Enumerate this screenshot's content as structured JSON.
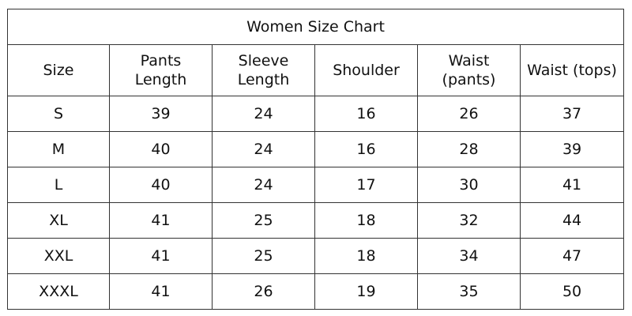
{
  "title": "Women Size Chart",
  "headers": [
    "Size",
    "Pants Length",
    "Sleeve Length",
    "Shoulder",
    "Waist (pants)",
    "Waist (tops)"
  ],
  "header_lines": [
    [
      "Size"
    ],
    [
      "Pants",
      "Length"
    ],
    [
      "Sleeve",
      "Length"
    ],
    [
      "Shoulder"
    ],
    [
      "Waist",
      "(pants)"
    ],
    [
      "Waist (tops)"
    ]
  ],
  "rows": [
    [
      "S",
      "39",
      "24",
      "16",
      "26",
      "37"
    ],
    [
      "M",
      "40",
      "24",
      "16",
      "28",
      "39"
    ],
    [
      "L",
      "40",
      "24",
      "17",
      "30",
      "41"
    ],
    [
      "XL",
      "41",
      "25",
      "18",
      "32",
      "44"
    ],
    [
      "XXL",
      "41",
      "25",
      "18",
      "34",
      "47"
    ],
    [
      "XXXL",
      "41",
      "26",
      "19",
      "35",
      "50"
    ]
  ]
}
